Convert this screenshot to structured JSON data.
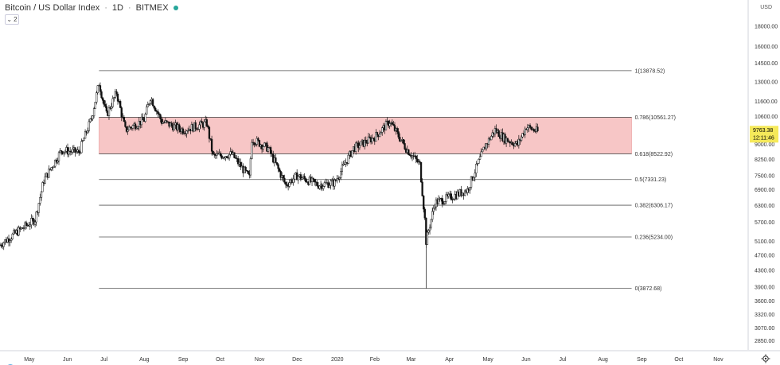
{
  "header": {
    "symbol": "Bitcoin / US Dollar Index",
    "interval": "1D",
    "exchange": "BITMEX",
    "indicator_count": "2"
  },
  "price_axis": {
    "currency": "USD",
    "labels": [
      "18000.00",
      "16000.00",
      "14500.00",
      "13000.00",
      "11600.00",
      "10600.00",
      "9000.00",
      "8250.00",
      "7500.00",
      "6900.00",
      "6300.00",
      "5700.00",
      "5100.00",
      "4700.00",
      "4300.00",
      "3900.00",
      "3600.00",
      "3320.00",
      "3070.00",
      "2850.00"
    ],
    "last_price": "9763.38",
    "countdown": "12:11:46"
  },
  "time_axis": {
    "labels": [
      "May",
      "Jun",
      "Jul",
      "Aug",
      "Sep",
      "Oct",
      "Nov",
      "Dec",
      "2020",
      "Feb",
      "Mar",
      "Apr",
      "May",
      "Jun",
      "Jul",
      "Aug",
      "Sep",
      "Oct",
      "Nov"
    ]
  },
  "fib_levels": [
    {
      "ratio": "1",
      "price": 13878.52,
      "label": "1(13878.52)"
    },
    {
      "ratio": "0.786",
      "price": 10561.27,
      "label": "0.786(10561.27)"
    },
    {
      "ratio": "0.618",
      "price": 8522.92,
      "label": "0.618(8522.92)"
    },
    {
      "ratio": "0.5",
      "price": 7331.23,
      "label": "0.5(7331.23)"
    },
    {
      "ratio": "0.382",
      "price": 6306.17,
      "label": "0.382(6306.17)"
    },
    {
      "ratio": "0.236",
      "price": 5234.0,
      "label": "0.236(5234.00)"
    },
    {
      "ratio": "0",
      "price": 3872.68,
      "label": "0(3872.68)"
    }
  ],
  "colors": {
    "zone_fill": "#f6bcbc",
    "zone_border": "#e9a0a0",
    "candle": "#111111",
    "price_tag": "#f5e95a",
    "fib_line": "#555555"
  },
  "chart_data": {
    "type": "candlestick",
    "title": "Bitcoin / US Dollar Index",
    "y_scale": "log",
    "ylim": [
      2700,
      21000
    ],
    "x_start": "2019-04-08",
    "x_end": "2020-11-25",
    "series": [
      {
        "x": [
          "2019-04-08",
          "2019-04-22",
          "2019-05-06",
          "2019-05-13",
          "2019-05-27",
          "2019-06-10",
          "2019-06-20",
          "2019-06-26",
          "2019-07-02",
          "2019-07-10",
          "2019-07-17",
          "2019-08-01",
          "2019-08-06",
          "2019-08-15",
          "2019-09-01",
          "2019-09-20",
          "2019-09-25",
          "2019-10-10",
          "2019-10-24",
          "2019-10-26",
          "2019-11-08",
          "2019-11-22",
          "2019-12-01",
          "2019-12-18",
          "2019-12-31",
          "2020-01-15",
          "2020-02-01",
          "2020-02-13",
          "2020-02-26",
          "2020-03-08",
          "2020-03-12",
          "2020-03-13",
          "2020-03-20",
          "2020-04-01",
          "2020-04-15",
          "2020-04-29",
          "2020-05-07",
          "2020-05-15",
          "2020-05-25",
          "2020-06-01",
          "2020-06-10"
        ],
        "close": [
          5000,
          5400,
          5800,
          7300,
          8700,
          8600,
          10500,
          12900,
          10700,
          12200,
          9800,
          10400,
          11900,
          10300,
          9800,
          10200,
          8400,
          8500,
          7400,
          9300,
          8800,
          7100,
          7500,
          7100,
          7200,
          8800,
          9400,
          10300,
          8800,
          8000,
          5800,
          5100,
          6400,
          6600,
          6900,
          8900,
          9800,
          9300,
          9000,
          10000,
          9700
        ]
      }
    ]
  }
}
